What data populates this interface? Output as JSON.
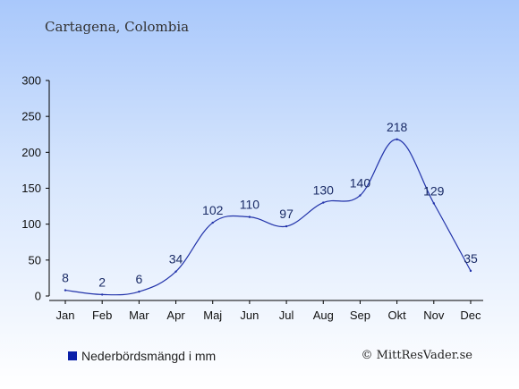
{
  "title": "Cartagena, Colombia",
  "legend": {
    "label": "Nederbördsmängd i mm"
  },
  "credit": "© MittResVader.se",
  "colors": {
    "line": "#2233aa",
    "legend_swatch": "#0a1fa8",
    "axis": "#000000",
    "label": "#1a2b66"
  },
  "chart_data": {
    "type": "line",
    "categories": [
      "Jan",
      "Feb",
      "Mar",
      "Apr",
      "Maj",
      "Jun",
      "Jul",
      "Aug",
      "Sep",
      "Okt",
      "Nov",
      "Dec"
    ],
    "series": [
      {
        "name": "Nederbördsmängd i mm",
        "values": [
          8,
          2,
          6,
          34,
          102,
          110,
          97,
          130,
          140,
          218,
          129,
          35
        ]
      }
    ],
    "ylim": [
      0,
      300
    ],
    "yticks": [
      0,
      50,
      100,
      150,
      200,
      250,
      300
    ],
    "grid": false,
    "legend_position": "bottom-left",
    "data_labels": true
  }
}
